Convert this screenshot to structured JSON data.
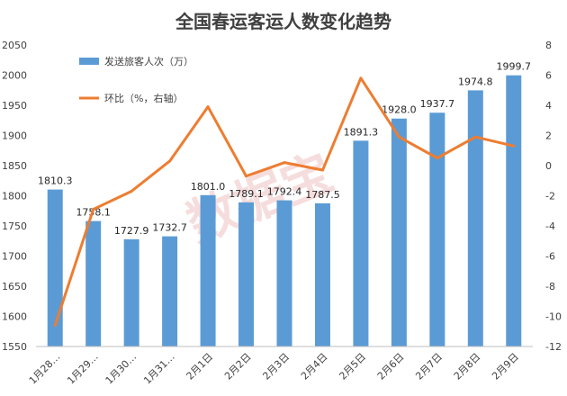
{
  "chart_data": {
    "type": "bar",
    "title": "全国春运客运人数变化趋势",
    "watermark": "数据宝",
    "categories": [
      "1月28…",
      "1月29…",
      "1月30…",
      "1月31…",
      "2月1日",
      "2月2日",
      "2月3日",
      "2月4日",
      "2月5日",
      "2月6日",
      "2月7日",
      "2月8日",
      "2月9日"
    ],
    "series": [
      {
        "name": "发送旅客人次（万）",
        "type": "bar",
        "axis": "left",
        "color": "#5b9bd5",
        "values": [
          1810.3,
          1758.1,
          1727.9,
          1732.7,
          1801.0,
          1789.1,
          1792.4,
          1787.5,
          1891.3,
          1928.0,
          1937.7,
          1974.8,
          1999.7
        ],
        "labels": [
          "1810.3",
          "1758.1",
          "1727.9",
          "1732.7",
          "1801.0",
          "1789.1",
          "1792.4",
          "1787.5",
          "1891.3",
          "1928.0",
          "1937.7",
          "1974.8",
          "1999.7"
        ]
      },
      {
        "name": "环比（%，右轴）",
        "type": "line",
        "axis": "right",
        "color": "#ed7d31",
        "values": [
          -10.6,
          -2.9,
          -1.7,
          0.3,
          3.9,
          -0.7,
          0.2,
          -0.3,
          5.8,
          1.9,
          0.5,
          1.9,
          1.3
        ]
      }
    ],
    "y_left": {
      "range": [
        1550,
        2050
      ],
      "ticks": [
        "1550",
        "1600",
        "1650",
        "1700",
        "1750",
        "1800",
        "1850",
        "1900",
        "1950",
        "2000",
        "2050"
      ]
    },
    "y_right": {
      "range": [
        -12,
        8
      ],
      "ticks": [
        "-12",
        "-10",
        "-8",
        "-6",
        "-4",
        "-2",
        "0",
        "2",
        "4",
        "6",
        "8"
      ]
    },
    "legend": "top-left",
    "grid": false
  }
}
